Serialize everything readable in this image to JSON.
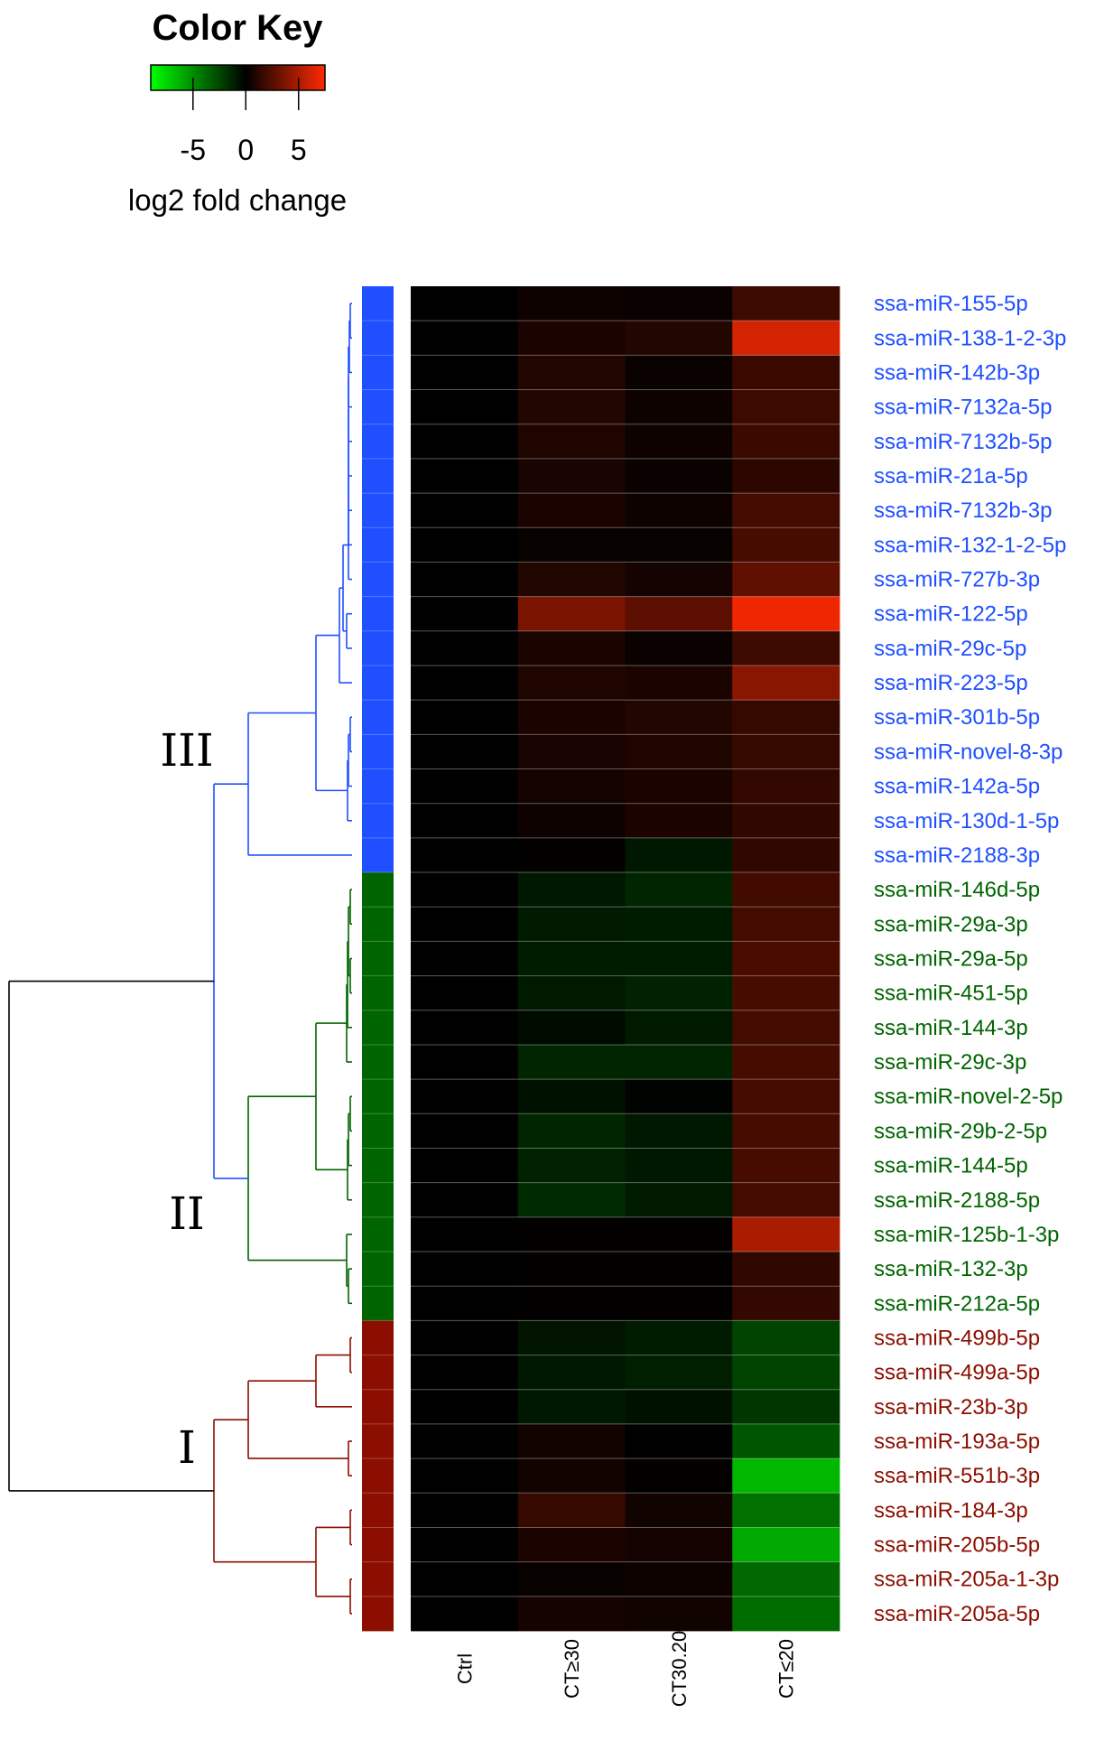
{
  "chart_data": {
    "type": "heatmap",
    "color_key": {
      "title": "Color Key",
      "label": "log2 fold change",
      "ticks": [
        "-5",
        "0",
        "5"
      ],
      "range": [
        -9,
        7.5
      ],
      "low_color": "#00ff00",
      "mid_color": "#000000",
      "high_color": "#ff2a00"
    },
    "columns": [
      "Ctrl",
      "CT≥30",
      "CT30.20",
      "CT≤20"
    ],
    "cluster_colors": {
      "III": "#1f4fff",
      "II": "#006400",
      "I": "#8b0e00"
    },
    "cluster_labels": [
      "III",
      "II",
      "I"
    ],
    "rows": [
      {
        "label": "ssa-miR-155-5p",
        "cluster": "III",
        "values": [
          0,
          0.4,
          0.3,
          1.8
        ]
      },
      {
        "label": "ssa-miR-138-1-2-3p",
        "cluster": "III",
        "values": [
          0,
          0.8,
          1.0,
          6.2
        ]
      },
      {
        "label": "ssa-miR-142b-3p",
        "cluster": "III",
        "values": [
          0,
          1.0,
          0.3,
          1.7
        ]
      },
      {
        "label": "ssa-miR-7132a-5p",
        "cluster": "III",
        "values": [
          0,
          1.0,
          0.4,
          1.8
        ]
      },
      {
        "label": "ssa-miR-7132b-5p",
        "cluster": "III",
        "values": [
          0,
          0.9,
          0.4,
          1.7
        ]
      },
      {
        "label": "ssa-miR-21a-5p",
        "cluster": "III",
        "values": [
          0,
          0.7,
          0.3,
          1.3
        ]
      },
      {
        "label": "ssa-miR-7132b-3p",
        "cluster": "III",
        "values": [
          0,
          0.8,
          0.4,
          2.0
        ]
      },
      {
        "label": "ssa-miR-132-1-2-5p",
        "cluster": "III",
        "values": [
          0,
          0.2,
          0.2,
          2.1
        ]
      },
      {
        "label": "ssa-miR-727b-3p",
        "cluster": "III",
        "values": [
          0,
          1.0,
          0.6,
          2.8
        ]
      },
      {
        "label": "ssa-miR-122-5p",
        "cluster": "III",
        "values": [
          0,
          3.6,
          2.7,
          7.0
        ]
      },
      {
        "label": "ssa-miR-29c-5p",
        "cluster": "III",
        "values": [
          0,
          0.8,
          0.3,
          1.8
        ]
      },
      {
        "label": "ssa-miR-223-5p",
        "cluster": "III",
        "values": [
          0,
          0.9,
          0.8,
          4.0
        ]
      },
      {
        "label": "ssa-miR-301b-5p",
        "cluster": "III",
        "values": [
          0,
          0.8,
          1.0,
          1.6
        ]
      },
      {
        "label": "ssa-miR-novel-8-3p",
        "cluster": "III",
        "values": [
          0,
          0.7,
          0.9,
          1.6
        ]
      },
      {
        "label": "ssa-miR-142a-5p",
        "cluster": "III",
        "values": [
          0,
          0.6,
          0.8,
          1.5
        ]
      },
      {
        "label": "ssa-miR-130d-1-5p",
        "cluster": "III",
        "values": [
          0,
          0.4,
          0.8,
          1.4
        ]
      },
      {
        "label": "ssa-miR-2188-3p",
        "cluster": "III",
        "values": [
          0,
          0.1,
          -0.8,
          1.4
        ]
      },
      {
        "label": "ssa-miR-146d-5p",
        "cluster": "II",
        "values": [
          0,
          -0.8,
          -1.3,
          1.9
        ]
      },
      {
        "label": "ssa-miR-29a-3p",
        "cluster": "II",
        "values": [
          0,
          -0.9,
          -1.0,
          2.0
        ]
      },
      {
        "label": "ssa-miR-29a-5p",
        "cluster": "II",
        "values": [
          0,
          -1.0,
          -1.0,
          2.2
        ]
      },
      {
        "label": "ssa-miR-451-5p",
        "cluster": "II",
        "values": [
          0,
          -0.9,
          -1.2,
          2.1
        ]
      },
      {
        "label": "ssa-miR-144-3p",
        "cluster": "II",
        "values": [
          0,
          -0.4,
          -0.9,
          2.0
        ]
      },
      {
        "label": "ssa-miR-29c-3p",
        "cluster": "II",
        "values": [
          0,
          -1.3,
          -1.3,
          2.1
        ]
      },
      {
        "label": "ssa-miR-novel-2-5p",
        "cluster": "II",
        "values": [
          0,
          -0.6,
          -0.1,
          2.0
        ]
      },
      {
        "label": "ssa-miR-29b-2-5p",
        "cluster": "II",
        "values": [
          0,
          -1.3,
          -0.8,
          2.1
        ]
      },
      {
        "label": "ssa-miR-144-5p",
        "cluster": "II",
        "values": [
          0,
          -1.2,
          -0.8,
          2.1
        ]
      },
      {
        "label": "ssa-miR-2188-5p",
        "cluster": "II",
        "values": [
          0,
          -1.5,
          -0.9,
          2.0
        ]
      },
      {
        "label": "ssa-miR-125b-1-3p",
        "cluster": "II",
        "values": [
          0,
          0.1,
          0.1,
          5.0
        ]
      },
      {
        "label": "ssa-miR-132-3p",
        "cluster": "II",
        "values": [
          0,
          0.1,
          0.1,
          1.4
        ]
      },
      {
        "label": "ssa-miR-212a-5p",
        "cluster": "II",
        "values": [
          0,
          0.1,
          0.1,
          1.5
        ]
      },
      {
        "label": "ssa-miR-499b-5p",
        "cluster": "I",
        "values": [
          0,
          -0.7,
          -1.0,
          -2.4
        ]
      },
      {
        "label": "ssa-miR-499a-5p",
        "cluster": "I",
        "values": [
          0,
          -0.8,
          -1.1,
          -2.4
        ]
      },
      {
        "label": "ssa-miR-23b-3p",
        "cluster": "I",
        "values": [
          0,
          -0.8,
          -0.6,
          -1.9
        ]
      },
      {
        "label": "ssa-miR-193a-5p",
        "cluster": "I",
        "values": [
          0,
          0.5,
          0.0,
          -3.0
        ]
      },
      {
        "label": "ssa-miR-551b-3p",
        "cluster": "I",
        "values": [
          0,
          0.5,
          0.1,
          -6.5
        ]
      },
      {
        "label": "ssa-miR-184-3p",
        "cluster": "I",
        "values": [
          0,
          1.6,
          0.5,
          -4.0
        ]
      },
      {
        "label": "ssa-miR-205b-5p",
        "cluster": "I",
        "values": [
          0,
          0.8,
          0.6,
          -6.0
        ]
      },
      {
        "label": "ssa-miR-205a-1-3p",
        "cluster": "I",
        "values": [
          0,
          0.2,
          0.4,
          -3.7
        ]
      },
      {
        "label": "ssa-miR-205a-5p",
        "cluster": "I",
        "values": [
          0,
          0.6,
          0.5,
          -3.8
        ]
      }
    ]
  }
}
